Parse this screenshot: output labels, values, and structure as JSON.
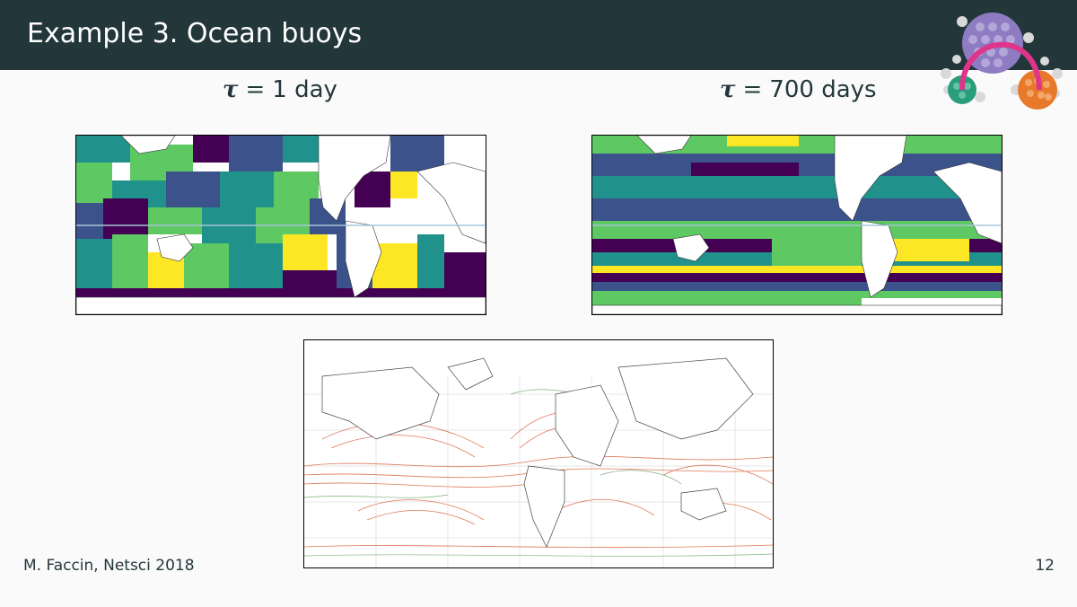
{
  "slide": {
    "title": "Example 3. Ocean buoys",
    "footer_author": "M. Faccin, Netsci 2018",
    "page_number": "12"
  },
  "captions": {
    "left": {
      "symbol": "τ",
      "equals": "=",
      "value": "1",
      "unit": "day"
    },
    "right": {
      "symbol": "τ",
      "equals": "=",
      "value": "700",
      "unit": "days"
    }
  },
  "colors": {
    "title_bar": "#23373b",
    "text": "#23373b",
    "background": "#fafafa",
    "viridis": [
      "#440154",
      "#3b528b",
      "#21918c",
      "#5ec962",
      "#fde725"
    ],
    "logo_purple": "#8e7cc3",
    "logo_green": "#2a9d7b",
    "logo_orange": "#e8782a",
    "logo_arc": "#e0338a"
  },
  "images": {
    "left": "clustered-world-map-tau-1",
    "right": "clustered-world-map-tau-700",
    "bottom": "ocean-currents-map"
  },
  "logo": "network-logo-icon"
}
